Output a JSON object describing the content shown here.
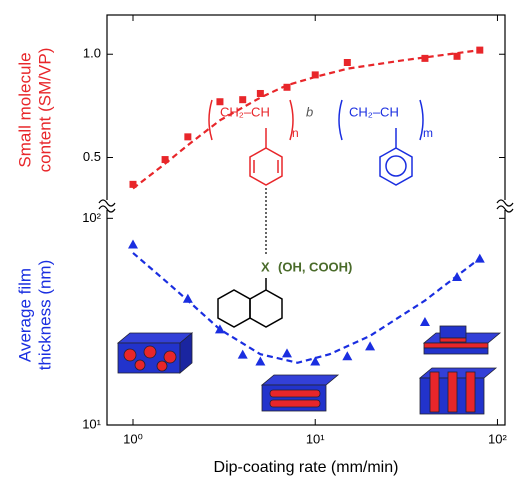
{
  "chart_data": [
    {
      "type": "scatter",
      "ylabel": [
        "Small molecule",
        "content (SM/VP)"
      ],
      "label_color": "#e8262a",
      "xlim": [
        0.72,
        110
      ],
      "xscale": "log",
      "ylim": [
        0.27,
        1.19
      ],
      "yscale": "linear",
      "yticks": [
        0.5,
        {
          "value": 1,
          "label": "1.0"
        }
      ],
      "series": [
        {
          "marker": "square",
          "color": "#e8262a",
          "x": [
            1,
            1.5,
            2,
            3,
            4,
            5,
            7,
            10,
            15,
            40,
            60,
            80
          ],
          "values": [
            0.37,
            0.49,
            0.6,
            0.77,
            0.78,
            0.81,
            0.84,
            0.9,
            0.96,
            0.98,
            0.99,
            1.02
          ]
        },
        {
          "style": "dashed",
          "color": "#e8262a",
          "x": [
            1,
            1.5,
            2,
            3,
            5,
            7,
            10,
            15,
            30,
            80
          ],
          "values": [
            0.35,
            0.47,
            0.56,
            0.68,
            0.79,
            0.85,
            0.89,
            0.93,
            0.97,
            1.02
          ]
        }
      ]
    },
    {
      "type": "scatter",
      "ylabel": [
        "Average film",
        "thickness (nm)"
      ],
      "label_color": "#1a2ee0",
      "xlabel": "Dip-coating rate (mm/min)",
      "xlim": [
        0.72,
        110
      ],
      "xscale": "log",
      "xticks": [
        {
          "value": 1,
          "label": "10⁰"
        },
        {
          "value": 10,
          "label": "10¹"
        },
        {
          "value": 100,
          "label": "10²"
        }
      ],
      "ylim": [
        10,
        116
      ],
      "yscale": "log",
      "yticks": [
        {
          "value": 10,
          "label": "10¹"
        },
        {
          "value": 100,
          "label": "10²"
        }
      ],
      "series": [
        {
          "marker": "triangle",
          "color": "#1a2ee0",
          "x": [
            1,
            2,
            3,
            4,
            5,
            7,
            10,
            15,
            20,
            40,
            60,
            80
          ],
          "values": [
            74.7,
            40.8,
            29,
            21.9,
            20.3,
            22.2,
            20.3,
            21.5,
            24,
            31.5,
            52,
            63.8
          ]
        },
        {
          "style": "dashed",
          "color": "#1a2ee0",
          "x": [
            1,
            1.5,
            2,
            3,
            5,
            8,
            12,
            20,
            40,
            80
          ],
          "values": [
            68,
            50,
            40,
            29,
            22,
            20,
            22,
            27,
            40,
            64
          ]
        }
      ]
    }
  ],
  "annotations": {
    "red_unit": "CH₂–CH",
    "n": "n",
    "b": "b",
    "blue_unit": "CH₂–CH",
    "m": "m",
    "x": "X",
    "x_groups": "(OH, COOH)"
  }
}
